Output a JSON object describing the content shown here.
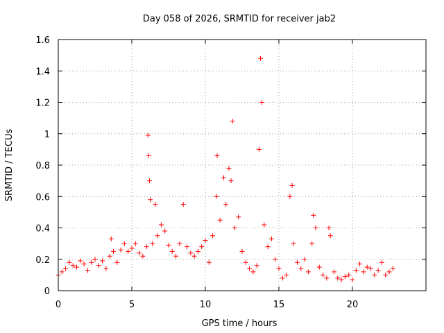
{
  "chart_data": {
    "type": "scatter",
    "title": "Day 058 of 2026, SRMTID for receiver jab2",
    "xlabel": "GPS time / hours",
    "ylabel": "SRMTID / TECUs",
    "xlim": [
      0,
      25
    ],
    "ylim": [
      0,
      1.6
    ],
    "x_ticks": [
      0,
      5,
      10,
      15,
      20
    ],
    "y_ticks": [
      0,
      0.2,
      0.4,
      0.6,
      0.8,
      1,
      1.2,
      1.4,
      1.6
    ],
    "x_tick_labels": [
      "0",
      "5",
      "10",
      "15",
      "20"
    ],
    "y_tick_labels": [
      "0",
      "0.2",
      "0.4",
      "0.6",
      "0.8",
      "1",
      "1.2",
      "1.4",
      "1.6"
    ],
    "grid": true,
    "marker": "plus",
    "color": "#ff0000",
    "x": [
      0.0,
      0.25,
      0.5,
      0.75,
      1.0,
      1.25,
      1.5,
      1.75,
      2.0,
      2.25,
      2.5,
      2.75,
      3.0,
      3.25,
      3.5,
      3.6,
      3.75,
      4.0,
      4.25,
      4.5,
      4.75,
      5.0,
      5.25,
      5.5,
      5.75,
      6.0,
      6.1,
      6.15,
      6.2,
      6.25,
      6.4,
      6.6,
      6.75,
      7.0,
      7.25,
      7.5,
      7.75,
      8.0,
      8.25,
      8.5,
      8.75,
      9.0,
      9.25,
      9.5,
      9.75,
      10.0,
      10.25,
      10.5,
      10.75,
      10.8,
      11.0,
      11.25,
      11.4,
      11.6,
      11.75,
      11.85,
      12.0,
      12.25,
      12.5,
      12.75,
      13.0,
      13.25,
      13.5,
      13.65,
      13.75,
      13.85,
      14.0,
      14.25,
      14.5,
      14.75,
      15.0,
      15.25,
      15.5,
      15.75,
      15.9,
      16.0,
      16.25,
      16.5,
      16.75,
      17.0,
      17.25,
      17.35,
      17.5,
      17.75,
      18.0,
      18.25,
      18.4,
      18.5,
      18.75,
      19.0,
      19.25,
      19.5,
      19.75,
      20.0,
      20.25,
      20.5,
      20.75,
      21.0,
      21.25,
      21.5,
      21.75,
      22.0,
      22.25,
      22.5,
      22.75
    ],
    "y": [
      0.1,
      0.12,
      0.14,
      0.18,
      0.16,
      0.15,
      0.19,
      0.17,
      0.13,
      0.18,
      0.2,
      0.16,
      0.19,
      0.14,
      0.22,
      0.33,
      0.25,
      0.18,
      0.26,
      0.3,
      0.25,
      0.27,
      0.3,
      0.24,
      0.22,
      0.28,
      0.99,
      0.86,
      0.7,
      0.58,
      0.3,
      0.55,
      0.35,
      0.42,
      0.38,
      0.29,
      0.25,
      0.22,
      0.3,
      0.55,
      0.28,
      0.24,
      0.22,
      0.25,
      0.28,
      0.32,
      0.18,
      0.35,
      0.6,
      0.86,
      0.45,
      0.72,
      0.55,
      0.78,
      0.7,
      1.08,
      0.4,
      0.47,
      0.25,
      0.18,
      0.14,
      0.12,
      0.16,
      0.9,
      1.48,
      1.2,
      0.42,
      0.28,
      0.33,
      0.2,
      0.14,
      0.08,
      0.1,
      0.6,
      0.67,
      0.3,
      0.18,
      0.14,
      0.2,
      0.12,
      0.3,
      0.48,
      0.4,
      0.15,
      0.1,
      0.08,
      0.4,
      0.35,
      0.12,
      0.08,
      0.07,
      0.09,
      0.1,
      0.07,
      0.13,
      0.17,
      0.12,
      0.15,
      0.14,
      0.1,
      0.13,
      0.18,
      0.1,
      0.12,
      0.14
    ]
  }
}
